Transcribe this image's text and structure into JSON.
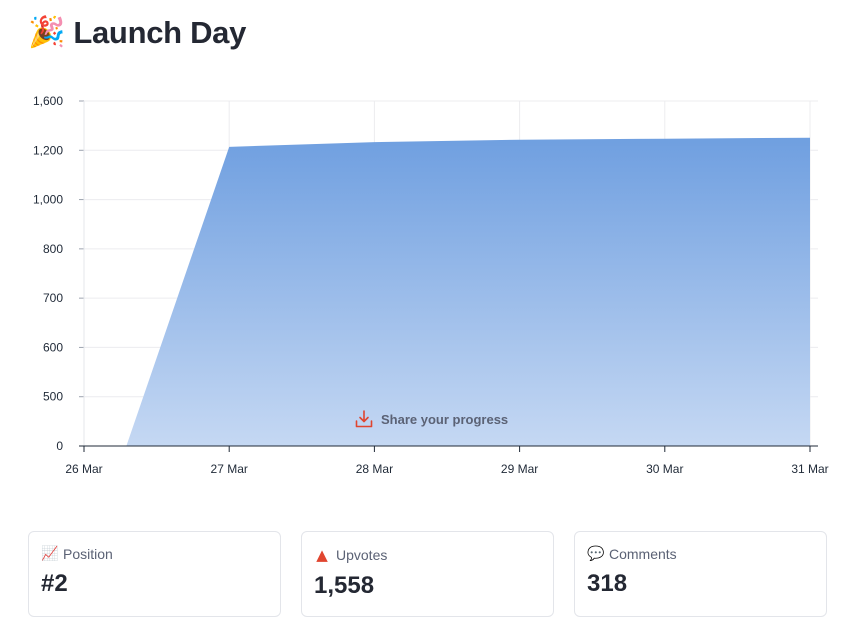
{
  "header": {
    "emoji": "🎉",
    "title": "Launch Day"
  },
  "chart_data": {
    "type": "area",
    "x": [
      "26 Mar",
      "27 Mar",
      "28 Mar",
      "29 Mar",
      "30 Mar",
      "31 Mar"
    ],
    "series": [
      {
        "points": [
          {
            "x": "26 Mar 07:00",
            "y": 0
          },
          {
            "x": "27 Mar",
            "y": 1228
          },
          {
            "x": "28 Mar",
            "y": 1266
          },
          {
            "x": "29 Mar",
            "y": 1286
          },
          {
            "x": "30 Mar",
            "y": 1294
          },
          {
            "x": "31 Mar",
            "y": 1302
          }
        ]
      }
    ],
    "y_ticks": [
      "0",
      "500",
      "600",
      "700",
      "800",
      "1,000",
      "1,200",
      "1,600"
    ],
    "fill_color_top": "#6f9fe0",
    "fill_color_bottom": "#c5d8f3",
    "grid": true
  },
  "share": {
    "label": "Share your progress",
    "icon": "download-icon",
    "color": "#e0452f"
  },
  "stats": [
    {
      "icon": "chart-increasing-icon",
      "glyph": "📈",
      "label": "Position",
      "value": "#2"
    },
    {
      "icon": "up-triangle-icon",
      "glyph": "▲",
      "label": "Upvotes",
      "value": "1,558"
    },
    {
      "icon": "speech-bubble-icon",
      "glyph": "💬",
      "label": "Comments",
      "value": "318"
    }
  ]
}
